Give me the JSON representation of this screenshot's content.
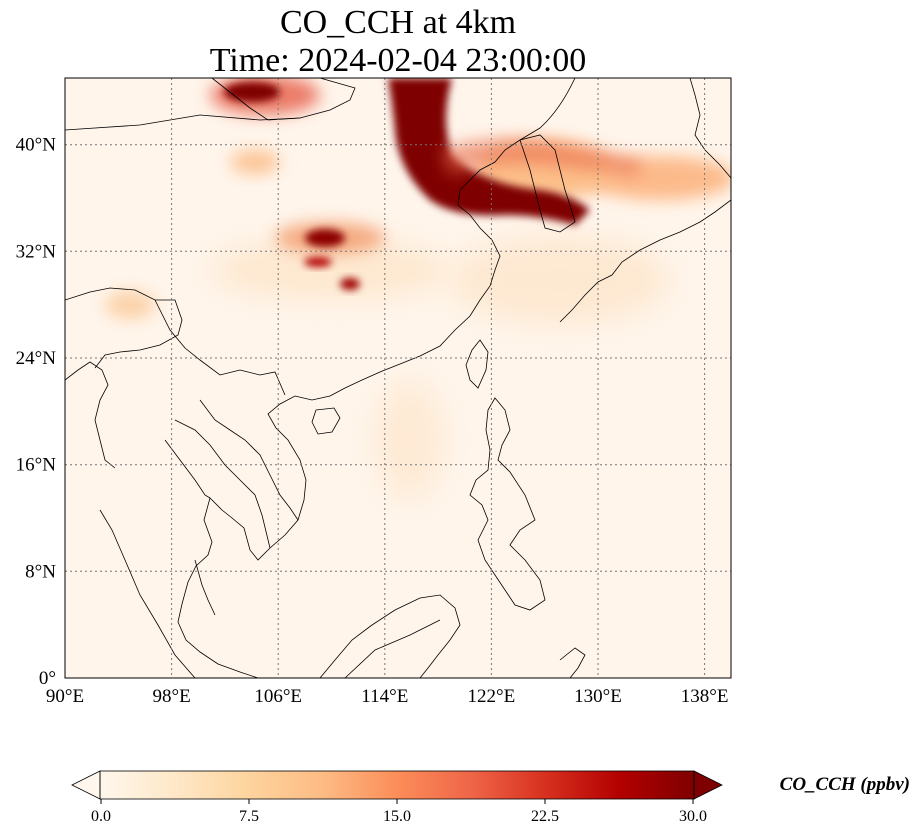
{
  "title": {
    "line1": "CO_CCH at 4km",
    "line2": "Time: 2024-02-04 23:00:00"
  },
  "map": {
    "extent": {
      "lon": [
        90,
        140
      ],
      "lat": [
        0,
        45
      ]
    },
    "projection": "PlateCarree",
    "gridlines": "dotted",
    "lon_ticks": [
      90,
      98,
      106,
      114,
      122,
      130,
      138
    ],
    "lat_ticks": [
      0,
      8,
      16,
      24,
      32,
      40
    ],
    "lon_labels": [
      "90°E",
      "98°E",
      "106°E",
      "114°E",
      "122°E",
      "130°E",
      "138°E"
    ],
    "lat_labels": [
      "0°",
      "8°N",
      "16°N",
      "24°N",
      "32°N",
      "40°N"
    ],
    "background_color": "#fff5eb"
  },
  "colorbar": {
    "colormap": "OrRd",
    "label": "CO_CCH (ppbv)",
    "ticks": [
      0.0,
      7.5,
      15.0,
      22.5,
      30.0
    ],
    "tick_labels": [
      "0.0",
      "7.5",
      "15.0",
      "22.5",
      "30.0"
    ],
    "range": [
      0,
      30
    ],
    "extend": "both",
    "colors": [
      "#fff7ec",
      "#fee8c8",
      "#fdd49e",
      "#fdbb84",
      "#fc8d59",
      "#ef6548",
      "#d7301f",
      "#b30000",
      "#7f0000"
    ]
  }
}
